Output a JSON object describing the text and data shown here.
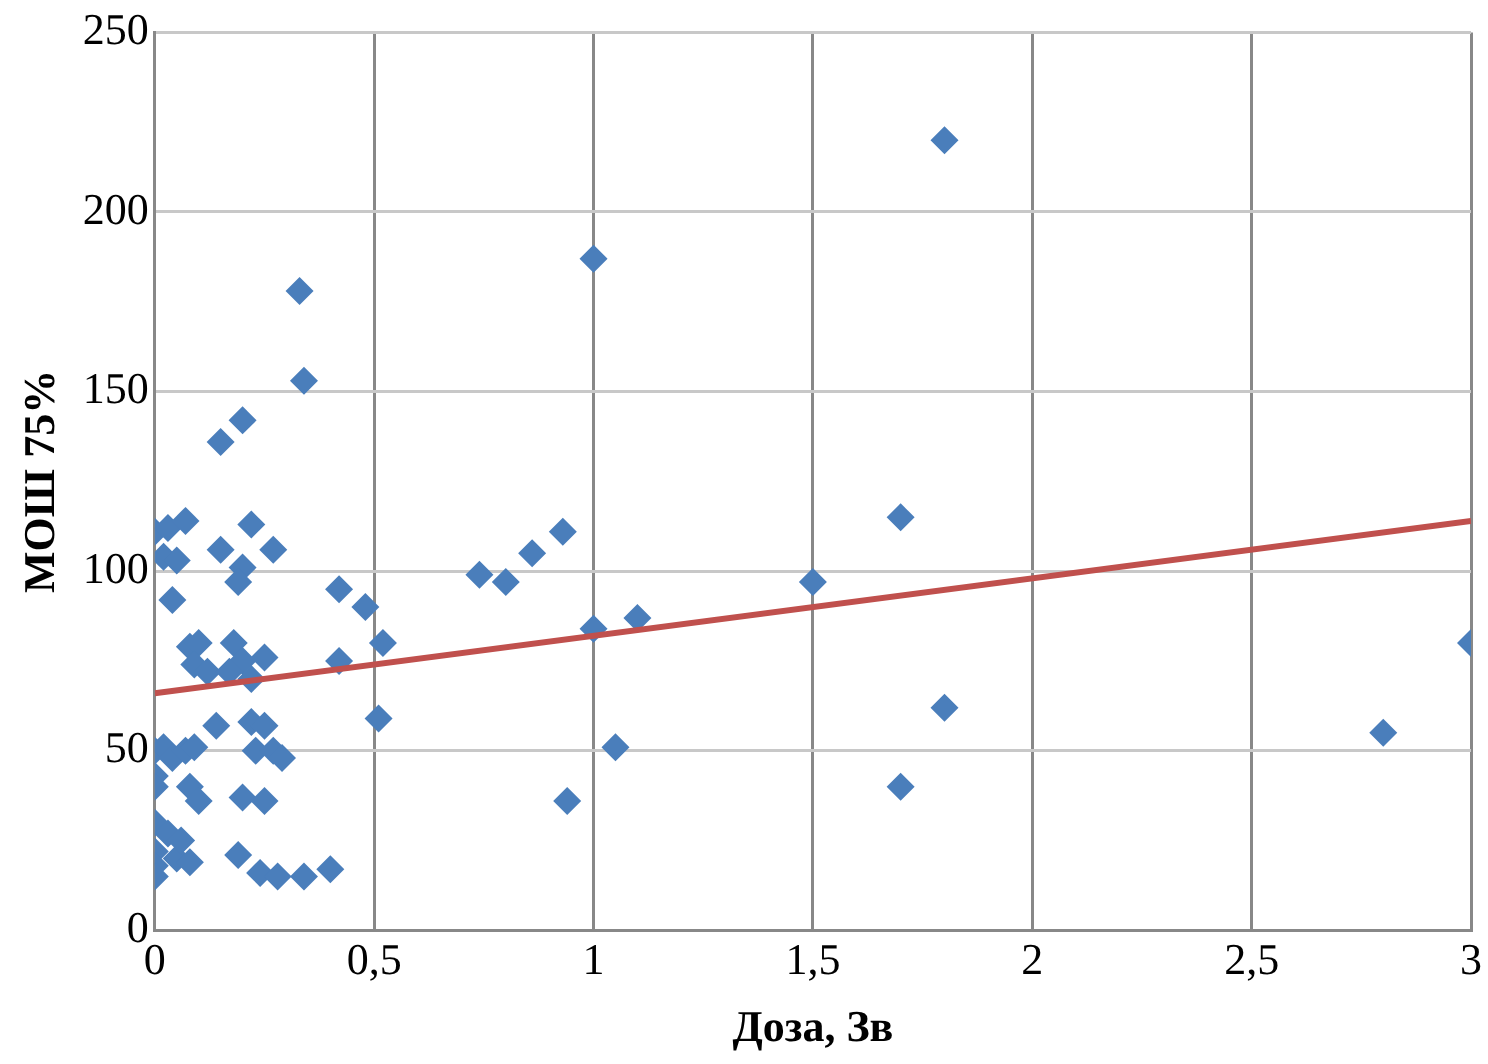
{
  "chart_data": {
    "type": "scatter",
    "xlabel": "Доза, Зв",
    "ylabel": "МОШ 75%",
    "xlim": [
      0,
      3
    ],
    "ylim": [
      0,
      250
    ],
    "xticks": [
      0,
      {
        "value": 0.5,
        "label": "0,5"
      },
      1,
      {
        "value": 1.5,
        "label": "1,5"
      },
      2,
      {
        "value": 2.5,
        "label": "2,5"
      },
      3
    ],
    "yticks": [
      0,
      50,
      100,
      150,
      200,
      250
    ],
    "grid": true,
    "legend": false,
    "marker": "diamond",
    "series": [
      {
        "color": "#4a7ebb",
        "x": [
          0,
          0.02,
          0.03,
          0.05,
          0.07,
          0.04,
          0,
          0,
          0,
          0.02,
          0.04,
          0,
          0,
          0,
          0,
          0.03,
          0.05,
          0.06,
          0.08,
          0.07,
          0.09,
          0.08,
          0.1,
          0.08,
          0.1,
          0.09,
          0.12,
          0.15,
          0.2,
          0.15,
          0.2,
          0.22,
          0.19,
          0.18,
          0.2,
          0.22,
          0.25,
          0.17,
          0.27,
          0.14,
          0.22,
          0.25,
          0.23,
          0.27,
          0.29,
          0.2,
          0.25,
          0.19,
          0.24,
          0.28,
          0.34,
          0.4,
          0.33,
          0.34,
          0.42,
          0.42,
          0.48,
          0.52,
          0.51,
          0.74,
          0.8,
          0.86,
          0.93,
          0.94,
          1,
          1,
          1.05,
          1.1,
          1.5,
          1.7,
          1.7,
          1.8,
          1.8,
          2.8,
          3
        ],
        "values": [
          111,
          104,
          112,
          103,
          114,
          92,
          50,
          43,
          40,
          51,
          48,
          30,
          22,
          18,
          15,
          27,
          20,
          25,
          19,
          50,
          51,
          40,
          36,
          79,
          80,
          74,
          72,
          136,
          142,
          106,
          101,
          113,
          97,
          80,
          75,
          70,
          76,
          72,
          106,
          57,
          58,
          57,
          50,
          50,
          48,
          37,
          36,
          21,
          16,
          15,
          15,
          17,
          178,
          153,
          75,
          95,
          90,
          80,
          59,
          99,
          97,
          105,
          111,
          36,
          187,
          84,
          51,
          87,
          97,
          115,
          40,
          220,
          62,
          55,
          80
        ]
      },
      {
        "type": "line",
        "color": "#c0504d",
        "marker": "none",
        "x": [
          0,
          3
        ],
        "values": [
          66,
          114
        ]
      }
    ]
  }
}
